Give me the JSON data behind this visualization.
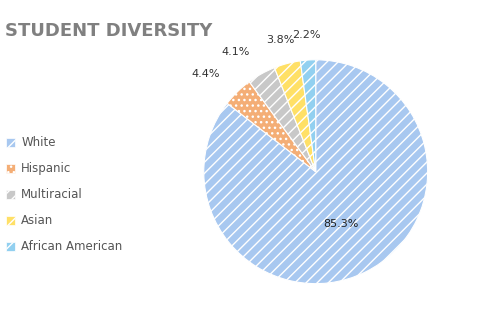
{
  "title": "STUDENT DIVERSITY",
  "slices": [
    {
      "label": "White",
      "value": 85.3,
      "color": "#a8c8f0",
      "hatch": "///"
    },
    {
      "label": "Hispanic",
      "value": 4.4,
      "color": "#f4ae76",
      "hatch": "..."
    },
    {
      "label": "Multiracial",
      "value": 4.1,
      "color": "#c8c8c8",
      "hatch": "///"
    },
    {
      "label": "Asian",
      "value": 3.8,
      "color": "#ffe066",
      "hatch": "///"
    },
    {
      "label": "African American",
      "value": 2.2,
      "color": "#92d0f0",
      "hatch": "///"
    }
  ],
  "startangle": 90,
  "title_fontsize": 13,
  "title_color": "#808080",
  "label_fontsize": 8,
  "legend_fontsize": 8.5,
  "bg_color": "#ffffff"
}
